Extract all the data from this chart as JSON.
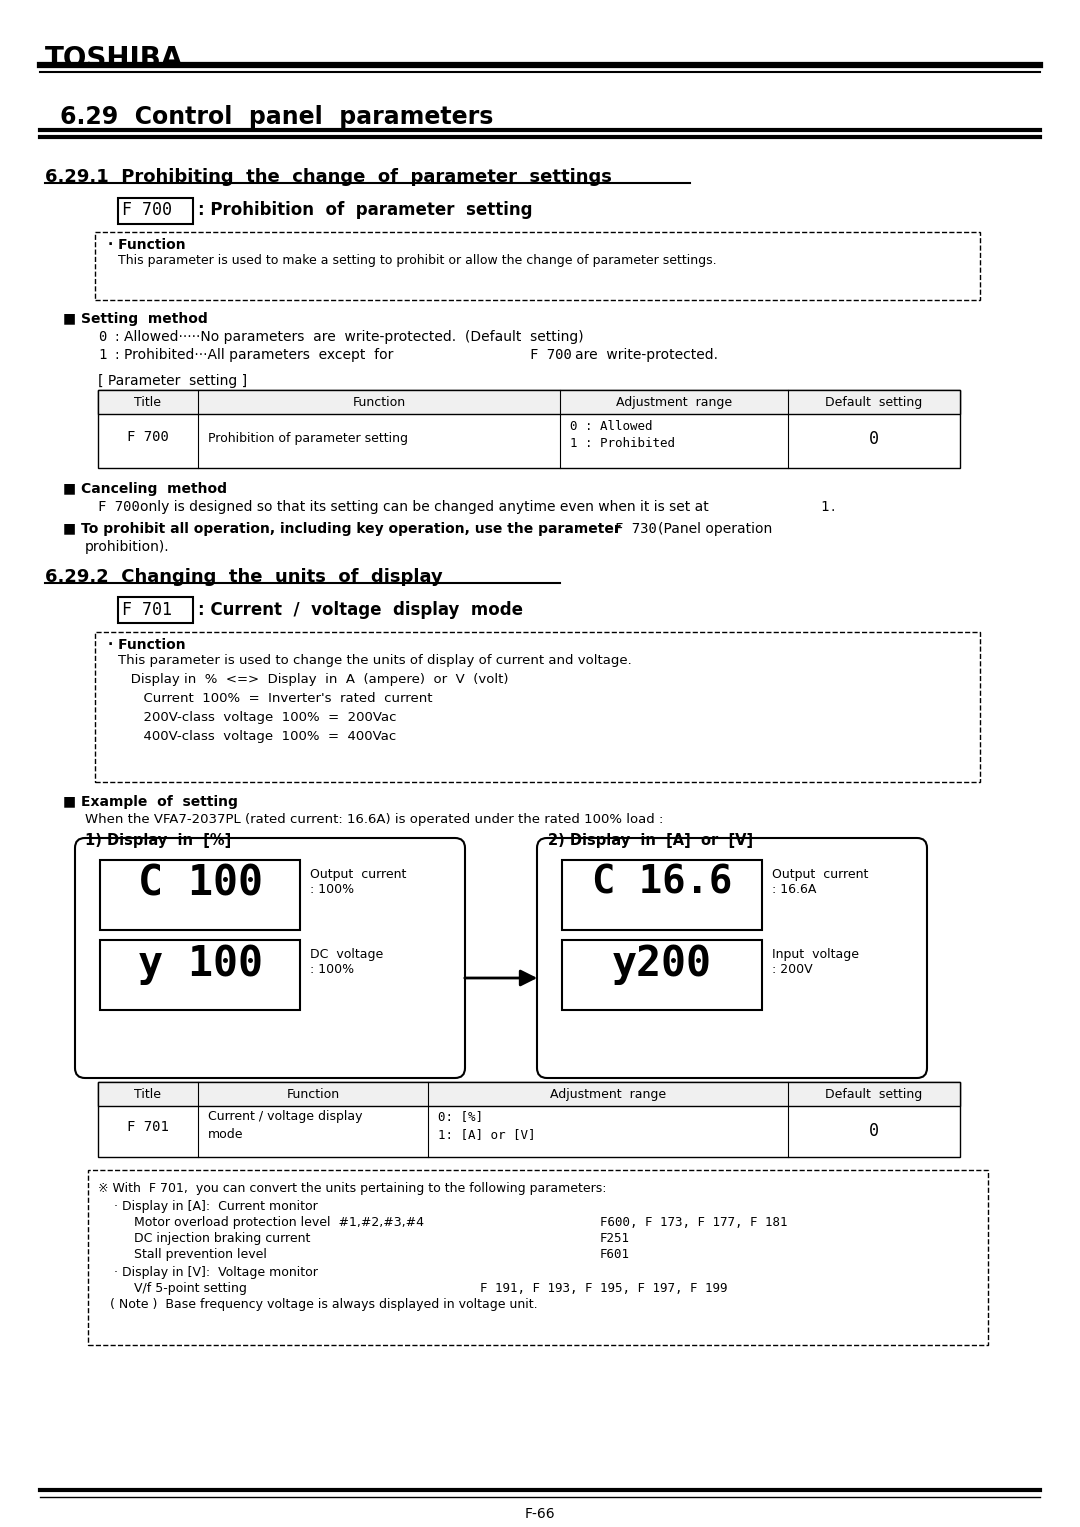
{
  "bg_color": "#ffffff",
  "page_number": "F-66",
  "toshiba_title": "TOSHIBA",
  "section_title": "6.29  Control  panel  parameters",
  "subsection1_title": "6.29.1  Prohibiting  the  change  of  parameter  settings",
  "param1_label": "F 700",
  "param1_desc": ": Prohibition  of  parameter  setting",
  "function1_title": "· Function",
  "function1_text": "This parameter is used to make a setting to prohibit or allow the change of parameter settings.",
  "setting_method_title": "■ Setting  method",
  "param_setting_label": "[ Parameter  setting ]",
  "table1_headers": [
    "Title",
    "Function",
    "Adjustment  range",
    "Default  setting"
  ],
  "canceling_title": "■ Canceling  method",
  "subsection2_title": "6.29.2  Changing  the  units  of  display",
  "param2_label": "F 701",
  "param2_desc": ": Current  /  voltage  display  mode",
  "function2_title": "· Function",
  "function2_lines": [
    "This parameter is used to change the units of display of current and voltage.",
    "   Display in  %  <=>  Display  in  A  (ampere)  or  V  (volt)",
    "      Current  100%  =  Inverter's  rated  current",
    "      200V-class  voltage  100%  =  200Vac",
    "      400V-class  voltage  100%  =  400Vac"
  ],
  "example_title": "■ Example  of  setting",
  "example_text": "When the VFA7-2037PL (rated current: 16.6A) is operated under the rated 100% load :",
  "display1_title": "1) Display  in  [%]",
  "display2_title": "2) Display  in  [A]  or  [V]",
  "table2_headers": [
    "Title",
    "Function",
    "Adjustment  range",
    "Default  setting"
  ],
  "note_box_lines": [
    "※ With  F 701,  you can convert the units pertaining to the following parameters:",
    "    · Display in [A]:  Current monitor",
    "         Motor overload protection level  #1,#2,#3,#4",
    "         DC injection braking current",
    "         Stall prevention level",
    "    · Display in [V]:  Voltage monitor",
    "         V/f 5-point setting",
    "         ( Note )  Base frequency voltage is always displayed in voltage unit."
  ],
  "note_mono_lines": {
    "2": [
      "F600, F 173, F 177, F 181",
      580
    ],
    "3": [
      "F251",
      580
    ],
    "4": [
      "F601",
      580
    ],
    "6": [
      "F 191, F 193, F 195, F 197, F 199",
      480
    ]
  }
}
